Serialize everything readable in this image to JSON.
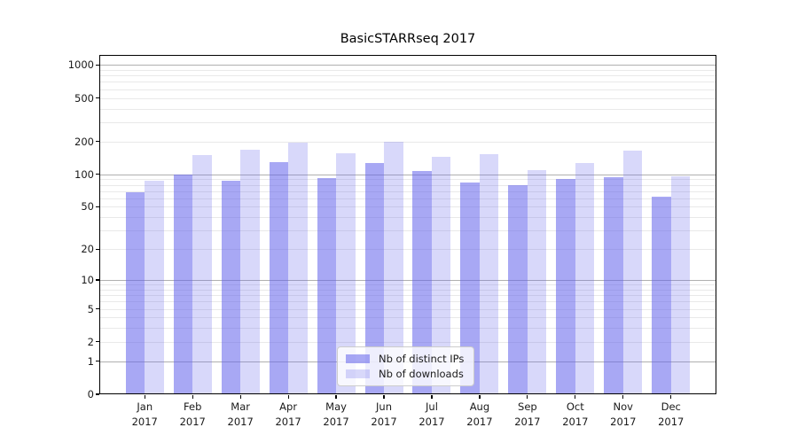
{
  "chart_data": {
    "type": "bar",
    "title": "BasicSTARRseq 2017",
    "categories": [
      "Jan",
      "Feb",
      "Mar",
      "Apr",
      "May",
      "Jun",
      "Jul",
      "Aug",
      "Sep",
      "Oct",
      "Nov",
      "Dec"
    ],
    "category_year": "2017",
    "series": [
      {
        "name": "Nb of distinct IPs",
        "color": "rgba(100,100,235,0.56)",
        "solid_color": "#a8a8f0",
        "values": [
          68,
          100,
          88,
          130,
          92,
          126,
          107,
          84,
          80,
          90,
          94,
          62
        ]
      },
      {
        "name": "Nb of downloads",
        "color": "rgba(100,100,235,0.25)",
        "solid_color": "#d9d9f6",
        "values": [
          88,
          150,
          168,
          195,
          156,
          200,
          145,
          152,
          110,
          128,
          164,
          96
        ]
      }
    ],
    "yscale": "log1p",
    "yticks": [
      0,
      1,
      2,
      5,
      10,
      20,
      50,
      100,
      200,
      500,
      1000
    ],
    "ylim": [
      0,
      1230
    ],
    "xlabel": "",
    "ylabel": "",
    "grid": {
      "enabled": true,
      "major_color": "#b0b0b0",
      "minor_color": "#e9e9e9"
    },
    "legend": {
      "position": "lower-center",
      "border_color": "#cccccc"
    },
    "axis_color": "#000000",
    "background_color": "#ffffff"
  }
}
